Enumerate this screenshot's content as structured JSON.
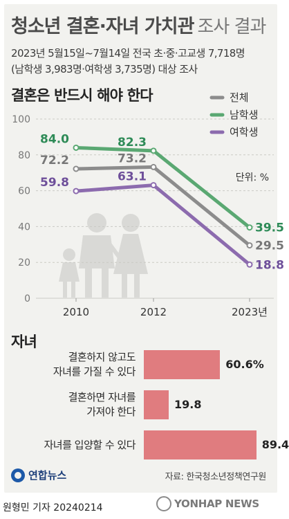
{
  "header": {
    "title_main": "청소년 결혼·자녀 가치관",
    "title_sub": "조사 결과",
    "info_line1": "2023년 5월15일~7월14일 전국 초·중·고교생 7,718명",
    "info_line2": "(남학생 3,983명·여학생 3,735명) 대상 조사"
  },
  "colors": {
    "total": "#8c8c8c",
    "male": "#5aa872",
    "female": "#8c6bae",
    "bar": "#e07c7f",
    "male_label": "#2e8b57",
    "female_label": "#6e4f9a"
  },
  "chart_data": [
    {
      "type": "line",
      "title": "결혼은 반드시 해야 한다",
      "unit_label": "단위: %",
      "categories": [
        "2010",
        "2012",
        "2023년"
      ],
      "ylim": [
        0,
        100
      ],
      "yticks": [
        0,
        20,
        40,
        60,
        80,
        100
      ],
      "grid": true,
      "legend_position": "top-right",
      "series": [
        {
          "name": "전체",
          "key": "total",
          "values": [
            72.2,
            73.2,
            29.5
          ]
        },
        {
          "name": "남학생",
          "key": "male",
          "values": [
            84.0,
            82.3,
            39.5
          ]
        },
        {
          "name": "여학생",
          "key": "female",
          "values": [
            59.8,
            63.1,
            18.8
          ]
        }
      ]
    },
    {
      "type": "bar",
      "title": "자녀",
      "orientation": "horizontal",
      "categories": [
        [
          "결혼하지 않고도",
          "자녀를 가질 수 있다"
        ],
        [
          "결혼하면 자녀를",
          "가져야 한다"
        ],
        [
          "자녀를 입양할 수 있다"
        ]
      ],
      "values": [
        60.6,
        19.8,
        89.4
      ],
      "value_labels": [
        "60.6%",
        "19.8",
        "89.4"
      ]
    }
  ],
  "footer": {
    "source": "자료: 한국청소년정책연구원",
    "logo": "연합뉴스",
    "credit": "원형민 기자  20240214",
    "watermark": "YONHAP NEWS"
  }
}
